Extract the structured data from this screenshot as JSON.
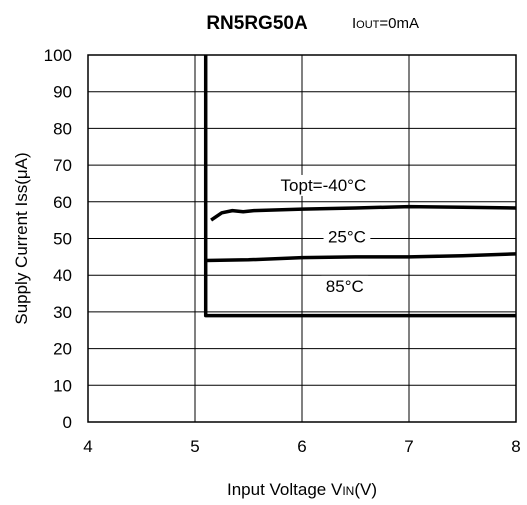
{
  "chart_data": {
    "type": "line",
    "title": "RN5RG50A",
    "subtitle": {
      "prefix": "I",
      "sub": "OUT",
      "suffix": "=0mA"
    },
    "xlabel": {
      "prefix": "Input Voltage V",
      "sub": "IN",
      "suffix": "(V)"
    },
    "ylabel": "Supply Current Iss(μA)",
    "xlim": [
      4,
      8
    ],
    "ylim": [
      0,
      100
    ],
    "xticks": [
      "4",
      "5",
      "6",
      "7",
      "8"
    ],
    "yticks": [
      "0",
      "10",
      "20",
      "30",
      "40",
      "50",
      "60",
      "70",
      "80",
      "90",
      "100"
    ],
    "grid": true,
    "series": [
      {
        "name": "Topt=-40°C",
        "x": [
          5.15,
          5.25,
          5.35,
          5.45,
          5.55,
          6.0,
          6.5,
          7.0,
          7.5,
          8.0
        ],
        "y": [
          55,
          57,
          57.6,
          57.3,
          57.6,
          58,
          58.3,
          58.7,
          58.5,
          58.3
        ]
      },
      {
        "name": "25°C",
        "x": [
          5.1,
          5.5,
          6.0,
          6.5,
          7.0,
          7.5,
          8.0
        ],
        "y": [
          44,
          44.2,
          44.8,
          45,
          45,
          45.3,
          45.8
        ]
      },
      {
        "name": "85°C",
        "x": [
          5.1,
          5.1,
          8.0
        ],
        "y": [
          100,
          29,
          29
        ]
      }
    ]
  }
}
